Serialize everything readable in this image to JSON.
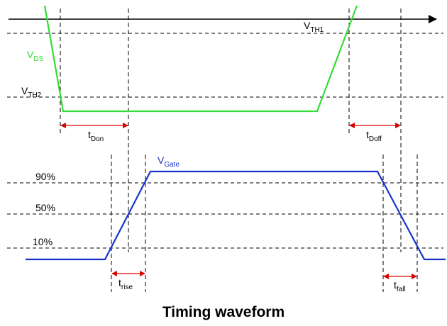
{
  "title": "Timing waveform",
  "colors": {
    "vds": "#33dd33",
    "vgate": "#1a33cc",
    "interval_arrow": "#dd0000",
    "axis": "#000000",
    "guide": "#000000"
  },
  "signals": {
    "vds": {
      "base": "V",
      "sub": "DS"
    },
    "vgate": {
      "base": "V",
      "sub": "Gate"
    }
  },
  "thresholds": {
    "vth1": {
      "base": "V",
      "sub": "TH1"
    },
    "vth2": {
      "base": "V",
      "sub": "TH2"
    }
  },
  "levels": {
    "p90": "90%",
    "p50": "50%",
    "p10": "10%"
  },
  "intervals": {
    "t_don": {
      "base": "t",
      "sub": "Don"
    },
    "t_doff": {
      "base": "t",
      "sub": "Doff"
    },
    "t_rise": {
      "base": "t",
      "sub": "rise"
    },
    "t_fall": {
      "base": "t",
      "sub": "fall"
    }
  }
}
